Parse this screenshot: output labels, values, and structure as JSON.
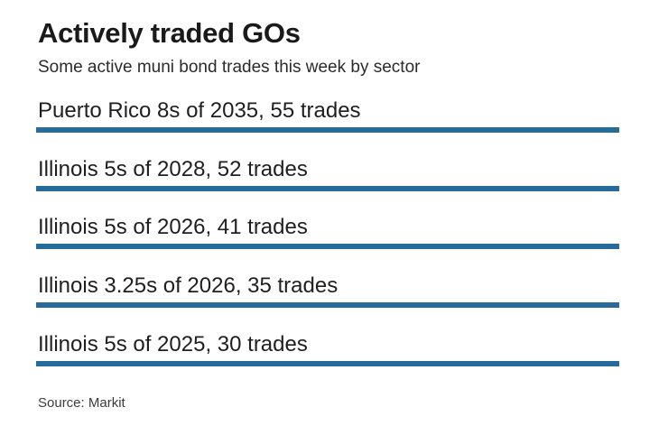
{
  "page": {
    "background": "#ffffff"
  },
  "chart_data": {
    "type": "bar",
    "orientation": "horizontal",
    "title": "Actively traded GOs",
    "subtitle": "Some active muni bond trades this week by sector",
    "categories": [
      "Puerto Rico 8s of 2035",
      "Illinois 5s of 2028",
      "Illinois 5s of 2026",
      "Illinois 3.25s of 2026",
      "Illinois 5s of 2025"
    ],
    "values": [
      55,
      52,
      41,
      35,
      30
    ],
    "unit": "trades",
    "labels": [
      "Puerto Rico 8s of 2035, 55 trades",
      "Illinois 5s of 2028, 52 trades",
      "Illinois 5s of 2026, 41 trades",
      "Illinois 3.25s of 2026, 35 trades",
      "Illinois 5s of 2025, 30 trades"
    ],
    "bar_color": "#276a9c",
    "text_color": "#1f1f1f",
    "source": "Source: Markit",
    "layout": {
      "bars_equal_length": true,
      "value_labels_inline": true,
      "legend": "none",
      "grid": "off",
      "axes": "none"
    }
  }
}
